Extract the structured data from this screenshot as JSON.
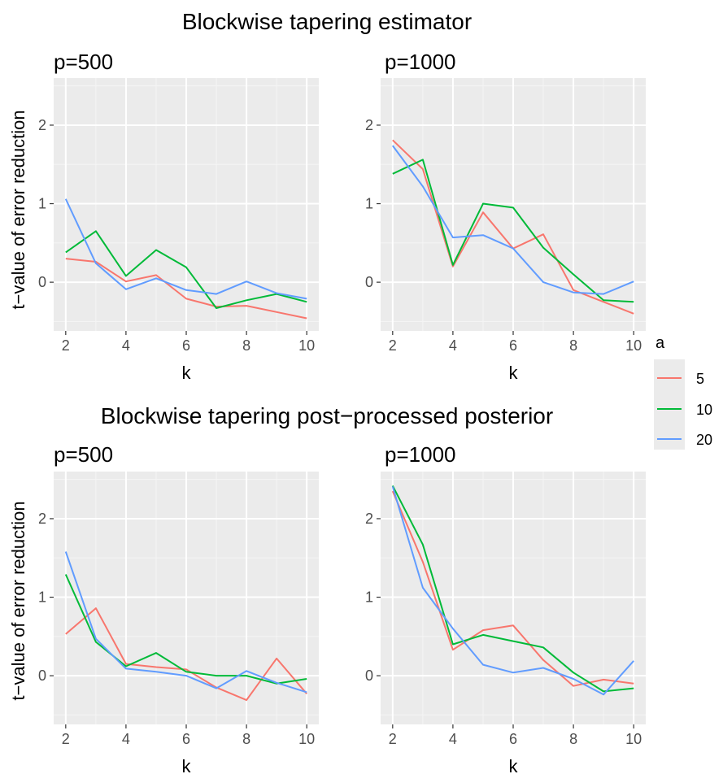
{
  "figure": {
    "title_top": "Blockwise tapering estimator",
    "title_bottom": "Blockwise tapering post−processed posterior",
    "ylabel": "t−value of error reduction",
    "xlabel": "k"
  },
  "legend": {
    "title": "a",
    "entries": [
      {
        "label": "5",
        "color": "#F8766D"
      },
      {
        "label": "10",
        "color": "#00BA38"
      },
      {
        "label": "20",
        "color": "#619CFF"
      }
    ]
  },
  "colors": {
    "panel_bg": "#EBEBEB",
    "grid_major": "#FFFFFF",
    "grid_minor": "#F5F5F5",
    "tick_text": "#4D4D4D"
  },
  "chart_data": [
    {
      "type": "line",
      "title": "p=500",
      "xlabel": "k",
      "ylabel": "t−value of error reduction",
      "x": [
        2,
        3,
        4,
        5,
        6,
        7,
        8,
        9,
        10
      ],
      "xlim": [
        1.6,
        10.4
      ],
      "ylim": [
        -0.62,
        2.6
      ],
      "xticks": [
        2,
        4,
        6,
        8,
        10
      ],
      "yticks": [
        0,
        1,
        2
      ],
      "grid": true,
      "series": [
        {
          "name": "5",
          "color": "#F8766D",
          "values": [
            0.3,
            0.26,
            0.01,
            0.09,
            -0.21,
            -0.31,
            -0.3,
            -0.38,
            -0.46
          ]
        },
        {
          "name": "10",
          "color": "#00BA38",
          "values": [
            0.38,
            0.65,
            0.08,
            0.41,
            0.19,
            -0.33,
            -0.23,
            -0.15,
            -0.25
          ]
        },
        {
          "name": "20",
          "color": "#619CFF",
          "values": [
            1.06,
            0.24,
            -0.09,
            0.05,
            -0.1,
            -0.15,
            0.01,
            -0.14,
            -0.21
          ]
        }
      ]
    },
    {
      "type": "line",
      "title": "p=1000",
      "xlabel": "k",
      "ylabel": "",
      "x": [
        2,
        3,
        4,
        5,
        6,
        7,
        8,
        9,
        10
      ],
      "xlim": [
        1.6,
        10.4
      ],
      "ylim": [
        -0.62,
        2.6
      ],
      "xticks": [
        2,
        4,
        6,
        8,
        10
      ],
      "yticks": [
        0,
        1,
        2
      ],
      "grid": true,
      "series": [
        {
          "name": "5",
          "color": "#F8766D",
          "values": [
            1.81,
            1.44,
            0.2,
            0.89,
            0.43,
            0.61,
            -0.1,
            -0.25,
            -0.4
          ]
        },
        {
          "name": "10",
          "color": "#00BA38",
          "values": [
            1.38,
            1.56,
            0.22,
            1.0,
            0.95,
            0.44,
            0.1,
            -0.23,
            -0.25
          ]
        },
        {
          "name": "20",
          "color": "#619CFF",
          "values": [
            1.74,
            1.22,
            0.57,
            0.6,
            0.43,
            0.0,
            -0.13,
            -0.15,
            0.01
          ]
        }
      ]
    },
    {
      "type": "line",
      "title": "p=500",
      "xlabel": "k",
      "ylabel": "t−value of error reduction",
      "x": [
        2,
        3,
        4,
        5,
        6,
        7,
        8,
        9,
        10
      ],
      "xlim": [
        1.6,
        10.4
      ],
      "ylim": [
        -0.62,
        2.6
      ],
      "xticks": [
        2,
        4,
        6,
        8,
        10
      ],
      "yticks": [
        0,
        1,
        2
      ],
      "grid": true,
      "series": [
        {
          "name": "5",
          "color": "#F8766D",
          "values": [
            0.53,
            0.86,
            0.15,
            0.11,
            0.08,
            -0.15,
            -0.31,
            0.22,
            -0.23
          ]
        },
        {
          "name": "10",
          "color": "#00BA38",
          "values": [
            1.29,
            0.43,
            0.12,
            0.29,
            0.05,
            0.0,
            0.0,
            -0.1,
            -0.04
          ]
        },
        {
          "name": "20",
          "color": "#619CFF",
          "values": [
            1.58,
            0.47,
            0.09,
            0.05,
            0.0,
            -0.16,
            0.06,
            -0.09,
            -0.21
          ]
        }
      ]
    },
    {
      "type": "line",
      "title": "p=1000",
      "xlabel": "k",
      "ylabel": "",
      "x": [
        2,
        3,
        4,
        5,
        6,
        7,
        8,
        9,
        10
      ],
      "xlim": [
        1.6,
        10.4
      ],
      "ylim": [
        -0.62,
        2.6
      ],
      "xticks": [
        2,
        4,
        6,
        8,
        10
      ],
      "yticks": [
        0,
        1,
        2
      ],
      "grid": true,
      "series": [
        {
          "name": "5",
          "color": "#F8766D",
          "values": [
            2.35,
            1.45,
            0.33,
            0.58,
            0.64,
            0.2,
            -0.13,
            -0.05,
            -0.1
          ]
        },
        {
          "name": "10",
          "color": "#00BA38",
          "values": [
            2.42,
            1.67,
            0.4,
            0.52,
            0.44,
            0.36,
            0.04,
            -0.2,
            -0.16
          ]
        },
        {
          "name": "20",
          "color": "#619CFF",
          "values": [
            2.41,
            1.12,
            0.6,
            0.14,
            0.04,
            0.1,
            -0.04,
            -0.24,
            0.19
          ]
        }
      ]
    }
  ]
}
